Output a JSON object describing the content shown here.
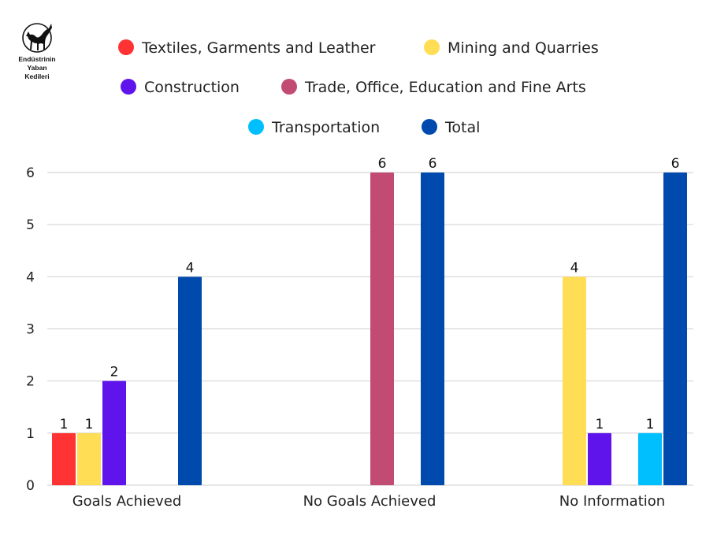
{
  "logo": {
    "text": [
      "Endüstrinin",
      "Yaban",
      "Kedileri"
    ],
    "icon": "black-cat-icon"
  },
  "chart_data": {
    "type": "bar",
    "categories": [
      "Goals Achieved",
      "No Goals Achieved",
      "No Information"
    ],
    "series": [
      {
        "name": "Textiles, Garments and Leather",
        "color": "#FF3333",
        "values": [
          1,
          null,
          null
        ]
      },
      {
        "name": "Mining and Quarries",
        "color": "#FFDD55",
        "values": [
          1,
          null,
          4
        ]
      },
      {
        "name": "Construction",
        "color": "#6014EC",
        "values": [
          2,
          null,
          1
        ]
      },
      {
        "name": "Trade, Office, Education and Fine Arts",
        "color": "#C24B74",
        "values": [
          null,
          6,
          null
        ]
      },
      {
        "name": "Transportation",
        "color": "#00BFFF",
        "values": [
          null,
          null,
          1
        ]
      },
      {
        "name": "Total",
        "color": "#004AAD",
        "values": [
          4,
          6,
          6
        ]
      }
    ],
    "ylim": [
      0,
      6
    ],
    "yticks": [
      "0",
      "1",
      "2",
      "3",
      "4",
      "5",
      "6"
    ],
    "grid": true,
    "legend_position": "top",
    "data_labels": true
  }
}
